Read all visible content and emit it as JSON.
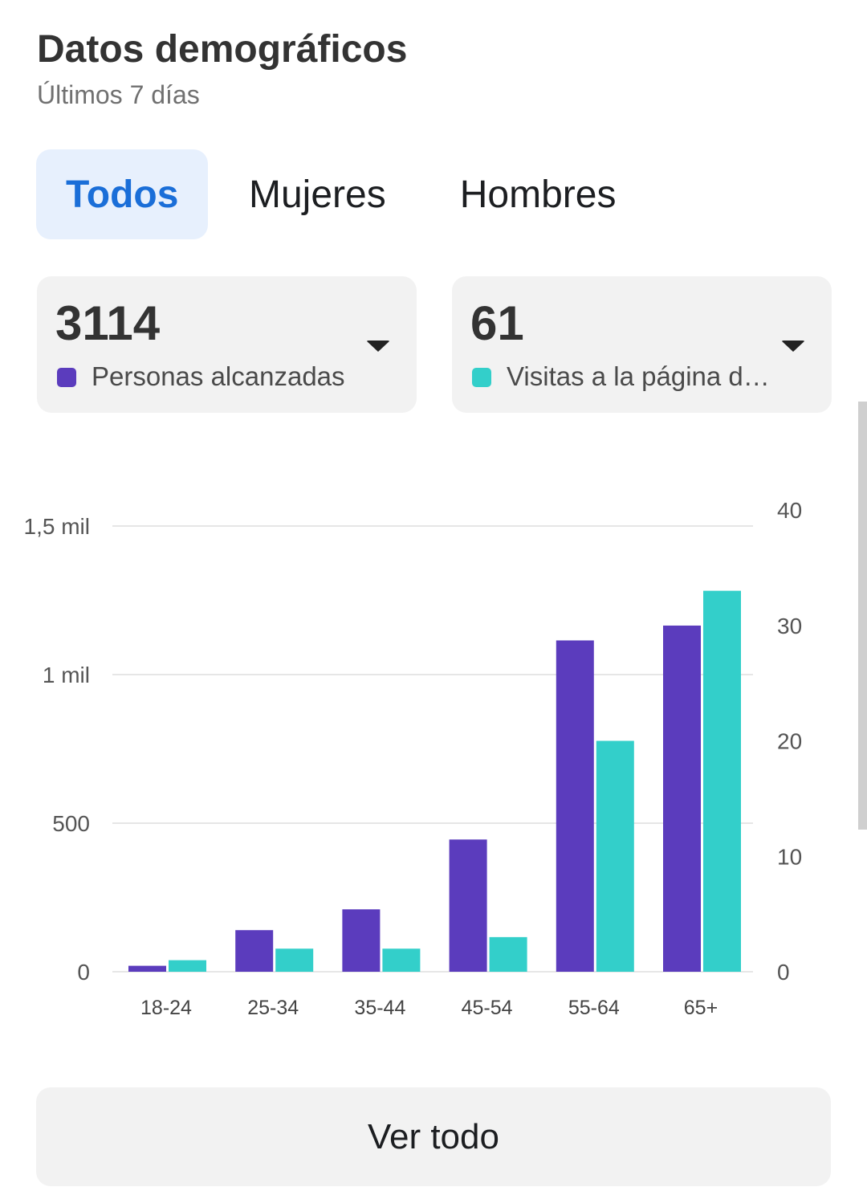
{
  "header": {
    "title": "Datos demográficos",
    "subtitle": "Últimos 7 días"
  },
  "tabs": [
    {
      "label": "Todos",
      "active": true
    },
    {
      "label": "Mujeres",
      "active": false
    },
    {
      "label": "Hombres",
      "active": false
    }
  ],
  "metrics": [
    {
      "value": "3114",
      "label": "Personas alcanzadas",
      "color": "#5b3cbd"
    },
    {
      "value": "61",
      "label": "Visitas a la página de Facebook",
      "color": "#33cfca"
    }
  ],
  "chart_data": {
    "type": "bar",
    "categories": [
      "18-24",
      "25-34",
      "35-44",
      "45-54",
      "55-64",
      "65+"
    ],
    "series": [
      {
        "axis": "left",
        "color": "#5b3cbd",
        "values": [
          20,
          140,
          210,
          445,
          1115,
          1165
        ]
      },
      {
        "axis": "right",
        "color": "#33cfca",
        "values": [
          1,
          2,
          2,
          3,
          20,
          33
        ]
      }
    ],
    "left_axis": {
      "ticks": [
        0,
        500,
        1000,
        1500
      ],
      "tick_labels": [
        "0",
        "500",
        "1 mil",
        "1,5 mil"
      ],
      "ylim": [
        0,
        1500
      ]
    },
    "right_axis": {
      "ticks": [
        0,
        10,
        20,
        30,
        40
      ],
      "tick_labels": [
        "0",
        "10",
        "20",
        "30",
        "40"
      ],
      "ylim": [
        0,
        40
      ]
    },
    "grid": true,
    "legend": "none"
  },
  "footer": {
    "button_label": "Ver todo"
  }
}
